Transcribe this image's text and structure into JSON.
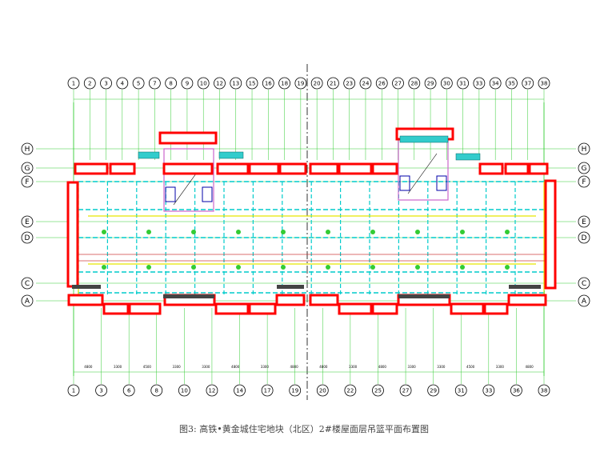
{
  "drawing": {
    "top_axes": [
      "1",
      "2",
      "3",
      "4",
      "5",
      "7",
      "8",
      "9",
      "10",
      "12",
      "13",
      "15",
      "16",
      "18",
      "19",
      "20",
      "21",
      "23",
      "24",
      "26",
      "27",
      "28",
      "29",
      "30",
      "31",
      "33",
      "34",
      "35",
      "37",
      "38"
    ],
    "bottom_axes": [
      "1",
      "3",
      "6",
      "8",
      "10",
      "12",
      "14",
      "17",
      "19",
      "20",
      "22",
      "25",
      "27",
      "29",
      "31",
      "33",
      "36",
      "38"
    ],
    "rows": [
      "H",
      "G",
      "F",
      "E",
      "D",
      "C",
      "A"
    ],
    "bottom_dims": [
      "4800",
      "3300",
      "4500",
      "3300",
      "3300",
      "4800",
      "3300",
      "4800",
      "4800",
      "3300",
      "4800",
      "3300",
      "3300",
      "4500",
      "3300",
      "4800"
    ],
    "caption": "图3: 高铁•黄金城住宅地块（北区）2#楼屋面层吊篮平面布置图"
  }
}
